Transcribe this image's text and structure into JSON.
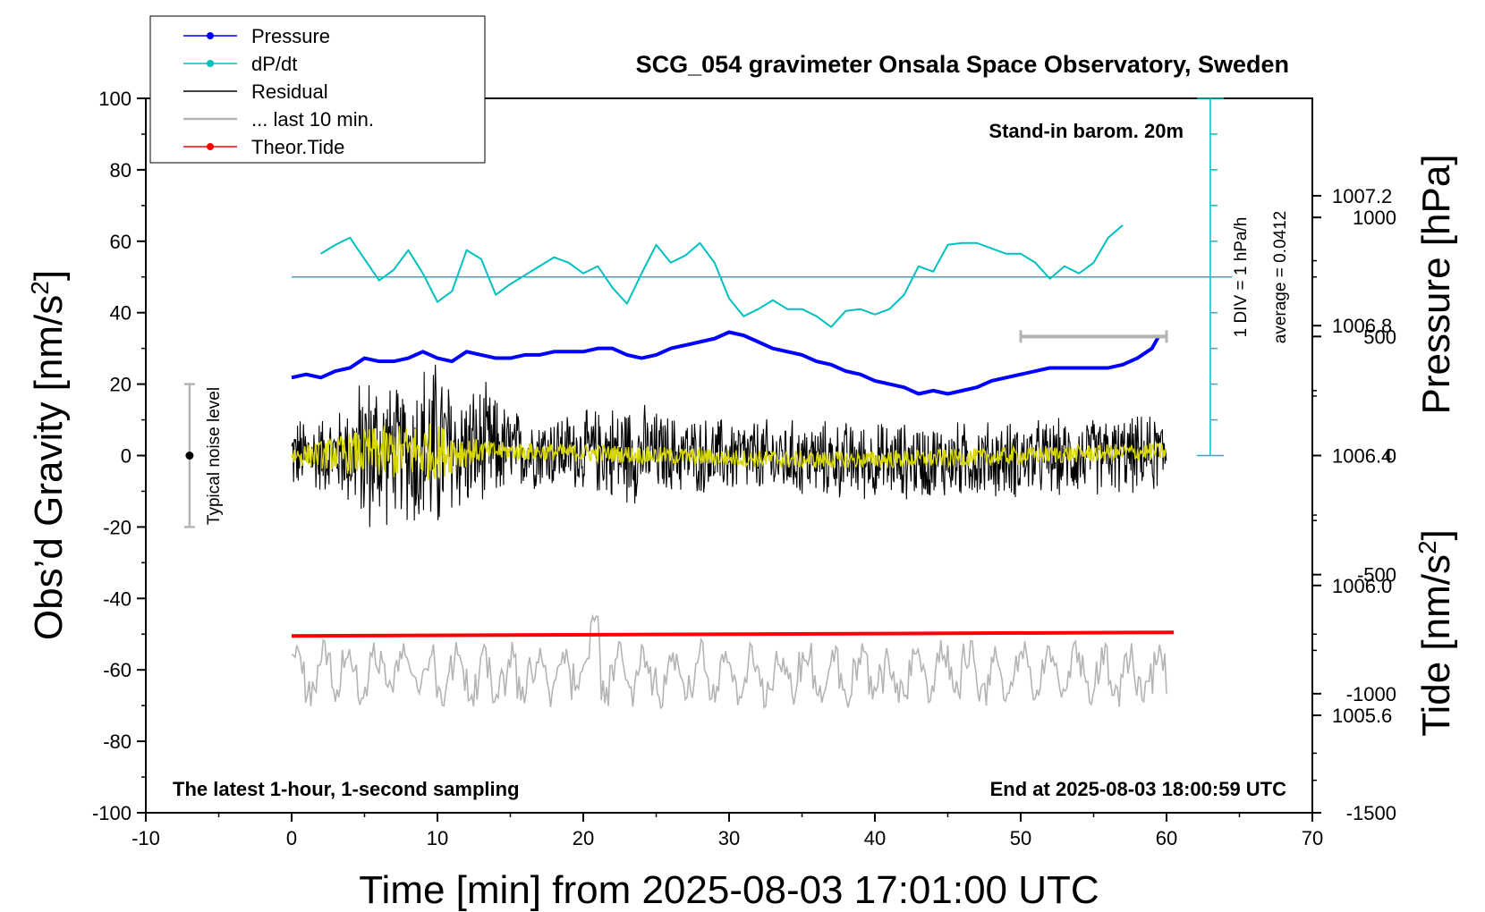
{
  "chart_data": {
    "type": "line",
    "title": "SCG_054 gravimeter Onsala Space Observatory, Sweden",
    "xlabel": "Time [min] from 2025-08-03 17:01:00 UTC",
    "ylabel_left_main": "Obs’d Gravity [nm/s",
    "ylabel_left_sup": "2",
    "ylabel_left_close": "]",
    "ylabel_right_top": "Pressure [hPa]",
    "ylabel_right_bottom_main": "Tide [nm/s",
    "ylabel_right_bottom_sup": "2",
    "ylabel_right_bottom_close": "]",
    "xlim": [
      -10,
      70
    ],
    "ylim": [
      -100,
      100
    ],
    "pressure_lim": [
      1005.3,
      1007.5
    ],
    "tide_lim": [
      -1500,
      1500
    ],
    "x_ticks": [
      "-10",
      "0",
      "10",
      "20",
      "30",
      "40",
      "50",
      "60",
      "70"
    ],
    "y_ticks": [
      "100",
      "80",
      "60",
      "40",
      "20",
      "0",
      "-20",
      "-40",
      "-60",
      "-80",
      "-100"
    ],
    "pressure_ticks": [
      "1007.2",
      "1006.8",
      "1006.4",
      "1006.0",
      "1005.6"
    ],
    "tide_ticks": [
      "1000",
      "500",
      "0",
      "-500",
      "-1000",
      "-1500"
    ],
    "legend": [
      {
        "label": "Pressure",
        "color": "#0000ff",
        "marker": true
      },
      {
        "label": "dP/dt",
        "color": "#00c0c0",
        "marker": true
      },
      {
        "label": "Residual",
        "color": "#000000",
        "marker": false
      },
      {
        "label": "... last 10 min.",
        "color": "#b4b4b4",
        "marker": false
      },
      {
        "label": "Theor.Tide",
        "color": "#ff0000",
        "marker": true
      }
    ],
    "annotations": {
      "barometer": "Stand-in barom. 20m",
      "div_label": "1 DIV = 1 hPa/h",
      "average_label": "average = 0.0412",
      "noise_label": "Typical noise level",
      "bottom_left": "The latest 1-hour, 1-second sampling",
      "bottom_right": "End at 2025-08-03 18:00:59 UTC"
    },
    "series": [
      {
        "name": "Pressure",
        "color": "#0000ff",
        "x": [
          0,
          1,
          2,
          3,
          4,
          5,
          6,
          7,
          8,
          9,
          10,
          11,
          12,
          13,
          14,
          15,
          16,
          17,
          18,
          19,
          20,
          21,
          22,
          23,
          24,
          25,
          26,
          27,
          28,
          29,
          30,
          31,
          32,
          33,
          34,
          35,
          36,
          37,
          38,
          39,
          40,
          41,
          42,
          43,
          44,
          45,
          46,
          47,
          48,
          49,
          50,
          51,
          52,
          53,
          54,
          55,
          56,
          57,
          58,
          59,
          59.5
        ],
        "y": [
          1006.64,
          1006.65,
          1006.64,
          1006.66,
          1006.67,
          1006.7,
          1006.69,
          1006.69,
          1006.7,
          1006.72,
          1006.7,
          1006.69,
          1006.72,
          1006.71,
          1006.7,
          1006.7,
          1006.71,
          1006.71,
          1006.72,
          1006.72,
          1006.72,
          1006.73,
          1006.73,
          1006.71,
          1006.7,
          1006.71,
          1006.73,
          1006.74,
          1006.75,
          1006.76,
          1006.78,
          1006.77,
          1006.75,
          1006.73,
          1006.72,
          1006.71,
          1006.69,
          1006.68,
          1006.66,
          1006.65,
          1006.63,
          1006.62,
          1006.61,
          1006.59,
          1006.6,
          1006.59,
          1006.6,
          1006.61,
          1006.63,
          1006.64,
          1006.65,
          1006.66,
          1006.67,
          1006.67,
          1006.67,
          1006.67,
          1006.67,
          1006.68,
          1006.7,
          1006.73,
          1006.77
        ]
      },
      {
        "name": "dP/dt",
        "color": "#00c0c0",
        "x": [
          2,
          3,
          4,
          5,
          6,
          7,
          8,
          9,
          10,
          11,
          12,
          13,
          14,
          15,
          16,
          17,
          18,
          19,
          20,
          21,
          22,
          23,
          24,
          25,
          26,
          27,
          28,
          29,
          30,
          31,
          32,
          33,
          34,
          35,
          36,
          37,
          38,
          39,
          40,
          41,
          42,
          43,
          44,
          45,
          46,
          47,
          48,
          49,
          50,
          51,
          52,
          53,
          54,
          55,
          56,
          57
        ],
        "y": [
          56.5,
          59,
          61,
          55,
          49,
          52,
          57.5,
          51,
          43,
          46,
          57.5,
          55,
          45,
          48,
          50.5,
          53,
          55.5,
          54,
          51,
          53,
          47,
          42.5,
          51,
          59,
          54,
          56,
          59.5,
          54,
          44,
          39,
          41,
          43.5,
          41,
          41,
          39,
          36,
          40.5,
          41,
          39.5,
          41,
          45,
          53,
          51.5,
          59,
          59.5,
          59.5,
          58,
          56.5,
          56.5,
          54,
          49.5,
          53,
          51,
          54,
          61,
          64.5
        ]
      }
    ],
    "tide": {
      "name": "Theor.Tide",
      "color": "#ff0000",
      "x0": 0,
      "y0": -50.5,
      "x1": 60.5,
      "y1": -49.5
    },
    "dpdt_baseline": 50,
    "noise_level": {
      "x": -7,
      "ymin": -20,
      "ymax": 20
    },
    "residual_amplitude_peak": 30,
    "last10_bar": {
      "x0": 50,
      "x1": 60,
      "y_tide": 500
    }
  }
}
